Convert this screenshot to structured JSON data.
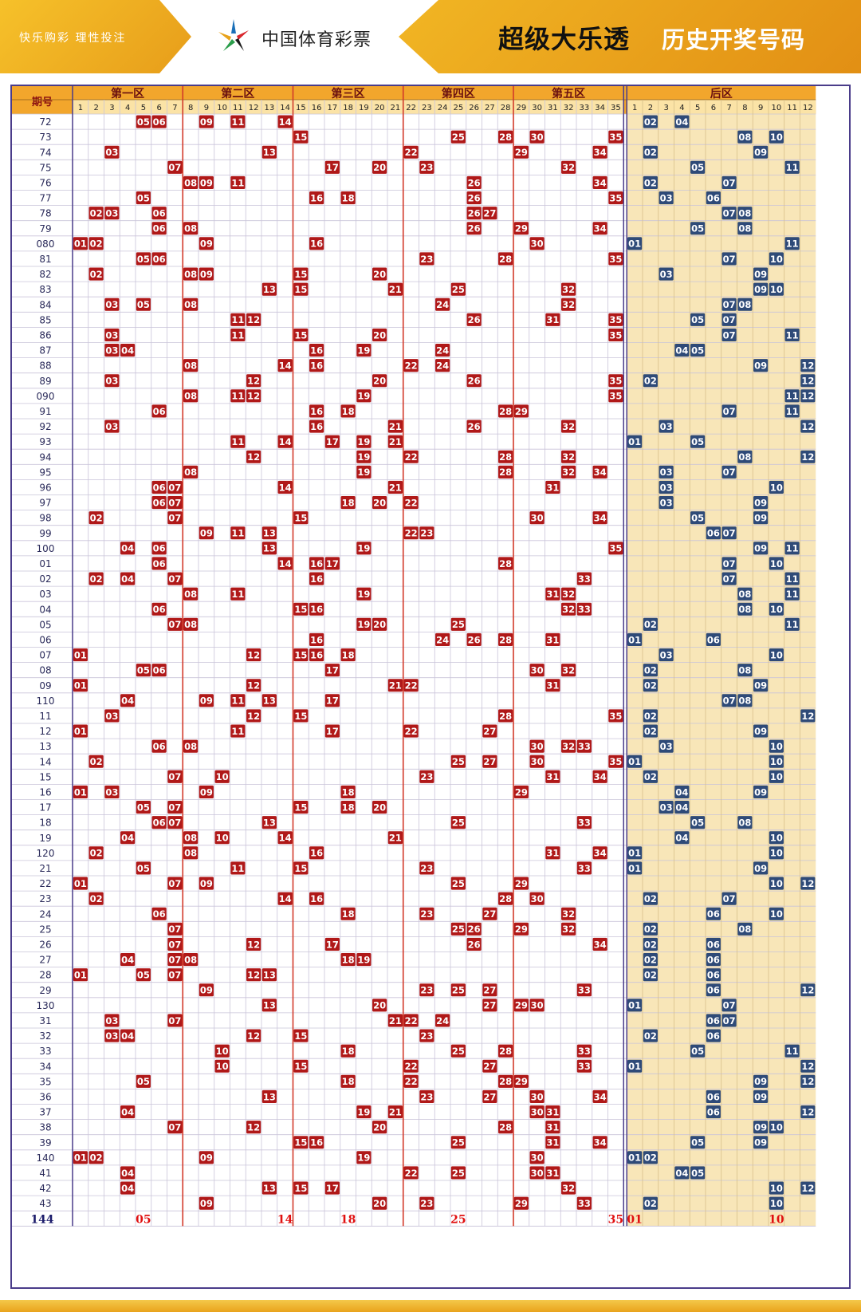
{
  "header": {
    "slogan": "快乐购彩  理性投注",
    "brand": "中国体育彩票",
    "title": "超级大乐透",
    "subtitle": "历史开奖号码"
  },
  "table": {
    "period_header": "期号",
    "front_zone_headers": [
      "第一区",
      "第二区",
      "第三区",
      "第四区",
      "第五区"
    ],
    "back_zone_header": "后区",
    "front_numbers": [
      "1",
      "2",
      "3",
      "4",
      "5",
      "6",
      "7",
      "8",
      "9",
      "10",
      "11",
      "12",
      "13",
      "14",
      "15",
      "16",
      "17",
      "18",
      "19",
      "20",
      "21",
      "22",
      "23",
      "24",
      "25",
      "26",
      "27",
      "28",
      "29",
      "30",
      "31",
      "32",
      "33",
      "34",
      "35"
    ],
    "back_numbers": [
      "1",
      "2",
      "3",
      "4",
      "5",
      "6",
      "7",
      "8",
      "9",
      "10",
      "11",
      "12"
    ],
    "front_ball_color": "#b01818",
    "back_ball_color": "#2e4a78",
    "back_zone_bg": "#f8e6b8",
    "rows": [
      {
        "period": "72",
        "front": [
          "05",
          "06",
          "09",
          "11",
          "14"
        ],
        "back": [
          "02",
          "04"
        ]
      },
      {
        "period": "73",
        "front": [
          "15",
          "25",
          "28",
          "30",
          "35"
        ],
        "back": [
          "08",
          "10"
        ]
      },
      {
        "period": "74",
        "front": [
          "03",
          "13",
          "22",
          "29",
          "34"
        ],
        "back": [
          "02",
          "09"
        ]
      },
      {
        "period": "75",
        "front": [
          "07",
          "17",
          "20",
          "23",
          "32"
        ],
        "back": [
          "05",
          "11"
        ]
      },
      {
        "period": "76",
        "front": [
          "08",
          "09",
          "11",
          "26",
          "34"
        ],
        "back": [
          "02",
          "07"
        ]
      },
      {
        "period": "77",
        "front": [
          "05",
          "16",
          "18",
          "26",
          "35"
        ],
        "back": [
          "03",
          "06"
        ]
      },
      {
        "period": "78",
        "front": [
          "02",
          "03",
          "06",
          "26",
          "27"
        ],
        "back": [
          "07",
          "08"
        ]
      },
      {
        "period": "79",
        "front": [
          "06",
          "08",
          "26",
          "29",
          "34"
        ],
        "back": [
          "05",
          "08"
        ]
      },
      {
        "period": "080",
        "front": [
          "01",
          "02",
          "09",
          "16",
          "30"
        ],
        "back": [
          "01",
          "11"
        ]
      },
      {
        "period": "81",
        "front": [
          "05",
          "06",
          "23",
          "28",
          "35"
        ],
        "back": [
          "07",
          "10"
        ]
      },
      {
        "period": "82",
        "front": [
          "02",
          "08",
          "09",
          "15",
          "20"
        ],
        "back": [
          "03",
          "09"
        ]
      },
      {
        "period": "83",
        "front": [
          "13",
          "15",
          "21",
          "25",
          "32"
        ],
        "back": [
          "09",
          "10"
        ]
      },
      {
        "period": "84",
        "front": [
          "03",
          "05",
          "08",
          "24",
          "32"
        ],
        "back": [
          "07",
          "08"
        ]
      },
      {
        "period": "85",
        "front": [
          "11",
          "12",
          "26",
          "31",
          "35"
        ],
        "back": [
          "05",
          "07"
        ]
      },
      {
        "period": "86",
        "front": [
          "03",
          "11",
          "15",
          "20",
          "35"
        ],
        "back": [
          "07",
          "11"
        ]
      },
      {
        "period": "87",
        "front": [
          "03",
          "04",
          "16",
          "19",
          "24"
        ],
        "back": [
          "04",
          "05"
        ]
      },
      {
        "period": "88",
        "front": [
          "08",
          "14",
          "16",
          "22",
          "24"
        ],
        "back": [
          "09",
          "12"
        ]
      },
      {
        "period": "89",
        "front": [
          "03",
          "12",
          "20",
          "26",
          "35"
        ],
        "back": [
          "02",
          "12"
        ]
      },
      {
        "period": "090",
        "front": [
          "08",
          "11",
          "12",
          "19",
          "35"
        ],
        "back": [
          "11",
          "12"
        ]
      },
      {
        "period": "91",
        "front": [
          "06",
          "16",
          "18",
          "28",
          "29"
        ],
        "back": [
          "07",
          "11"
        ]
      },
      {
        "period": "92",
        "front": [
          "03",
          "16",
          "21",
          "26",
          "32"
        ],
        "back": [
          "03",
          "12"
        ]
      },
      {
        "period": "93",
        "front": [
          "11",
          "14",
          "17",
          "19",
          "21"
        ],
        "back": [
          "01",
          "05"
        ]
      },
      {
        "period": "94",
        "front": [
          "12",
          "19",
          "22",
          "28",
          "32"
        ],
        "back": [
          "08",
          "12"
        ]
      },
      {
        "period": "95",
        "front": [
          "08",
          "19",
          "28",
          "32",
          "34"
        ],
        "back": [
          "03",
          "07"
        ]
      },
      {
        "period": "96",
        "front": [
          "06",
          "07",
          "14",
          "21",
          "31"
        ],
        "back": [
          "03",
          "10"
        ]
      },
      {
        "period": "97",
        "front": [
          "06",
          "07",
          "18",
          "20",
          "22"
        ],
        "back": [
          "03",
          "09"
        ]
      },
      {
        "period": "98",
        "front": [
          "02",
          "07",
          "15",
          "30",
          "34"
        ],
        "back": [
          "05",
          "09"
        ]
      },
      {
        "period": "99",
        "front": [
          "09",
          "11",
          "13",
          "22",
          "23"
        ],
        "back": [
          "06",
          "07"
        ]
      },
      {
        "period": "100",
        "front": [
          "04",
          "06",
          "13",
          "19",
          "35"
        ],
        "back": [
          "09",
          "11"
        ]
      },
      {
        "period": "01",
        "front": [
          "06",
          "14",
          "16",
          "17",
          "28"
        ],
        "back": [
          "07",
          "10"
        ]
      },
      {
        "period": "02",
        "front": [
          "02",
          "04",
          "07",
          "16",
          "33"
        ],
        "back": [
          "07",
          "11"
        ]
      },
      {
        "period": "03",
        "front": [
          "08",
          "11",
          "19",
          "31",
          "32"
        ],
        "back": [
          "08",
          "11"
        ]
      },
      {
        "period": "04",
        "front": [
          "06",
          "15",
          "16",
          "32",
          "33"
        ],
        "back": [
          "08",
          "10"
        ]
      },
      {
        "period": "05",
        "front": [
          "07",
          "08",
          "19",
          "20",
          "25"
        ],
        "back": [
          "02",
          "11"
        ]
      },
      {
        "period": "06",
        "front": [
          "16",
          "24",
          "26",
          "28",
          "31"
        ],
        "back": [
          "01",
          "06"
        ]
      },
      {
        "period": "07",
        "front": [
          "01",
          "12",
          "15",
          "16",
          "18"
        ],
        "back": [
          "03",
          "10"
        ]
      },
      {
        "period": "08",
        "front": [
          "05",
          "06",
          "17",
          "30",
          "32"
        ],
        "back": [
          "02",
          "08"
        ]
      },
      {
        "period": "09",
        "front": [
          "01",
          "12",
          "21",
          "22",
          "31"
        ],
        "back": [
          "02",
          "09"
        ]
      },
      {
        "period": "110",
        "front": [
          "04",
          "09",
          "11",
          "13",
          "17"
        ],
        "back": [
          "07",
          "08"
        ]
      },
      {
        "period": "11",
        "front": [
          "03",
          "12",
          "15",
          "28",
          "35"
        ],
        "back": [
          "02",
          "12"
        ]
      },
      {
        "period": "12",
        "front": [
          "01",
          "11",
          "17",
          "22",
          "27"
        ],
        "back": [
          "02",
          "09"
        ]
      },
      {
        "period": "13",
        "front": [
          "06",
          "08",
          "30",
          "32",
          "33"
        ],
        "back": [
          "03",
          "10"
        ]
      },
      {
        "period": "14",
        "front": [
          "02",
          "25",
          "27",
          "30",
          "35"
        ],
        "back": [
          "01",
          "10"
        ]
      },
      {
        "period": "15",
        "front": [
          "07",
          "10",
          "23",
          "31",
          "34"
        ],
        "back": [
          "02",
          "10"
        ]
      },
      {
        "period": "16",
        "front": [
          "01",
          "03",
          "09",
          "18",
          "29"
        ],
        "back": [
          "04",
          "09"
        ]
      },
      {
        "period": "17",
        "front": [
          "05",
          "07",
          "15",
          "18",
          "20"
        ],
        "back": [
          "03",
          "04"
        ]
      },
      {
        "period": "18",
        "front": [
          "06",
          "07",
          "13",
          "25",
          "33"
        ],
        "back": [
          "05",
          "08"
        ]
      },
      {
        "period": "19",
        "front": [
          "04",
          "08",
          "10",
          "14",
          "21"
        ],
        "back": [
          "04",
          "10"
        ]
      },
      {
        "period": "120",
        "front": [
          "02",
          "08",
          "16",
          "31",
          "34"
        ],
        "back": [
          "01",
          "10"
        ]
      },
      {
        "period": "21",
        "front": [
          "05",
          "11",
          "15",
          "23",
          "33"
        ],
        "back": [
          "01",
          "09"
        ]
      },
      {
        "period": "22",
        "front": [
          "01",
          "07",
          "09",
          "25",
          "29"
        ],
        "back": [
          "10",
          "12"
        ]
      },
      {
        "period": "23",
        "front": [
          "02",
          "14",
          "16",
          "28",
          "30"
        ],
        "back": [
          "02",
          "07"
        ]
      },
      {
        "period": "24",
        "front": [
          "06",
          "18",
          "23",
          "27",
          "32"
        ],
        "back": [
          "06",
          "10"
        ]
      },
      {
        "period": "25",
        "front": [
          "07",
          "25",
          "26",
          "29",
          "32"
        ],
        "back": [
          "02",
          "08"
        ]
      },
      {
        "period": "26",
        "front": [
          "07",
          "12",
          "17",
          "26",
          "34"
        ],
        "back": [
          "02",
          "06"
        ]
      },
      {
        "period": "27",
        "front": [
          "04",
          "07",
          "08",
          "18",
          "19"
        ],
        "back": [
          "02",
          "06"
        ]
      },
      {
        "period": "28",
        "front": [
          "01",
          "05",
          "07",
          "12",
          "13"
        ],
        "back": [
          "02",
          "06"
        ]
      },
      {
        "period": "29",
        "front": [
          "09",
          "23",
          "25",
          "27",
          "33"
        ],
        "back": [
          "06",
          "12"
        ]
      },
      {
        "period": "130",
        "front": [
          "13",
          "20",
          "27",
          "29",
          "30"
        ],
        "back": [
          "01",
          "07"
        ]
      },
      {
        "period": "31",
        "front": [
          "03",
          "07",
          "21",
          "22",
          "24"
        ],
        "back": [
          "06",
          "07"
        ]
      },
      {
        "period": "32",
        "front": [
          "03",
          "04",
          "12",
          "15",
          "23"
        ],
        "back": [
          "02",
          "06"
        ]
      },
      {
        "period": "33",
        "front": [
          "10",
          "18",
          "25",
          "28",
          "33"
        ],
        "back": [
          "05",
          "11"
        ]
      },
      {
        "period": "34",
        "front": [
          "10",
          "15",
          "22",
          "27",
          "33"
        ],
        "back": [
          "01",
          "12"
        ]
      },
      {
        "period": "35",
        "front": [
          "05",
          "18",
          "22",
          "28",
          "29"
        ],
        "back": [
          "09",
          "12"
        ]
      },
      {
        "period": "36",
        "front": [
          "13",
          "23",
          "27",
          "30",
          "34"
        ],
        "back": [
          "06",
          "09"
        ]
      },
      {
        "period": "37",
        "front": [
          "04",
          "19",
          "21",
          "30",
          "31"
        ],
        "back": [
          "06",
          "12"
        ]
      },
      {
        "period": "38",
        "front": [
          "07",
          "12",
          "20",
          "28",
          "31"
        ],
        "back": [
          "09",
          "10"
        ]
      },
      {
        "period": "39",
        "front": [
          "15",
          "16",
          "25",
          "31",
          "34"
        ],
        "back": [
          "05",
          "09"
        ]
      },
      {
        "period": "140",
        "front": [
          "01",
          "02",
          "09",
          "19",
          "30"
        ],
        "back": [
          "01",
          "02"
        ]
      },
      {
        "period": "41",
        "front": [
          "04",
          "22",
          "25",
          "30",
          "31"
        ],
        "back": [
          "04",
          "05"
        ]
      },
      {
        "period": "42",
        "front": [
          "04",
          "13",
          "15",
          "17",
          "32"
        ],
        "back": [
          "10",
          "12"
        ]
      },
      {
        "period": "43",
        "front": [
          "09",
          "20",
          "23",
          "29",
          "33"
        ],
        "back": [
          "02",
          "10"
        ]
      }
    ],
    "forecast": {
      "period": "144",
      "front": [
        "05",
        "14",
        "18",
        "25",
        "35"
      ],
      "back": [
        "01",
        "10"
      ]
    }
  }
}
